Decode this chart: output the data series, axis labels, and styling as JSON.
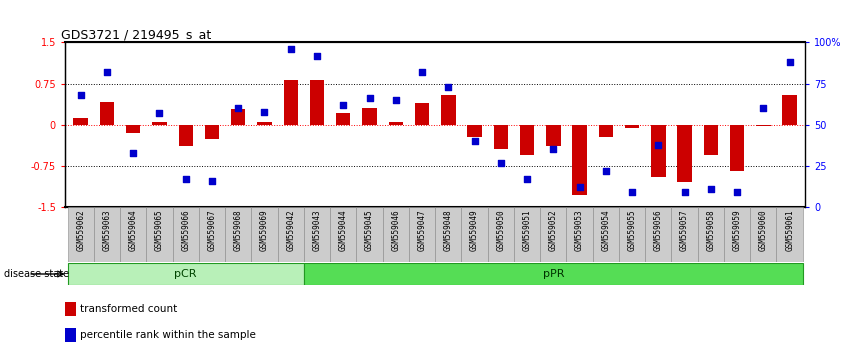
{
  "title": "GDS3721 / 219495_s_at",
  "samples": [
    "GSM559062",
    "GSM559063",
    "GSM559064",
    "GSM559065",
    "GSM559066",
    "GSM559067",
    "GSM559068",
    "GSM559069",
    "GSM559042",
    "GSM559043",
    "GSM559044",
    "GSM559045",
    "GSM559046",
    "GSM559047",
    "GSM559048",
    "GSM559049",
    "GSM559050",
    "GSM559051",
    "GSM559052",
    "GSM559053",
    "GSM559054",
    "GSM559055",
    "GSM559056",
    "GSM559057",
    "GSM559058",
    "GSM559059",
    "GSM559060",
    "GSM559061"
  ],
  "bar_values": [
    0.12,
    0.42,
    -0.15,
    0.05,
    -0.38,
    -0.25,
    0.28,
    0.05,
    0.82,
    0.82,
    0.22,
    0.3,
    0.05,
    0.4,
    0.55,
    -0.22,
    -0.45,
    -0.55,
    -0.38,
    -1.28,
    -0.22,
    -0.05,
    -0.95,
    -1.05,
    -0.55,
    -0.85,
    -0.03,
    0.55
  ],
  "dot_values": [
    68,
    82,
    33,
    57,
    17,
    16,
    60,
    58,
    96,
    92,
    62,
    66,
    65,
    82,
    73,
    40,
    27,
    17,
    35,
    12,
    22,
    9,
    38,
    9,
    11,
    9,
    60,
    88
  ],
  "pCR_count": 9,
  "ylim_lo": -1.5,
  "ylim_hi": 1.5,
  "bar_color": "#cc0000",
  "dot_color": "#0000cc",
  "pCR_color": "#b8f0b8",
  "pPR_color": "#55dd55",
  "xticklabel_bg": "#cccccc",
  "legend_bar_label": "transformed count",
  "legend_dot_label": "percentile rank within the sample",
  "disease_state_label": "disease state"
}
